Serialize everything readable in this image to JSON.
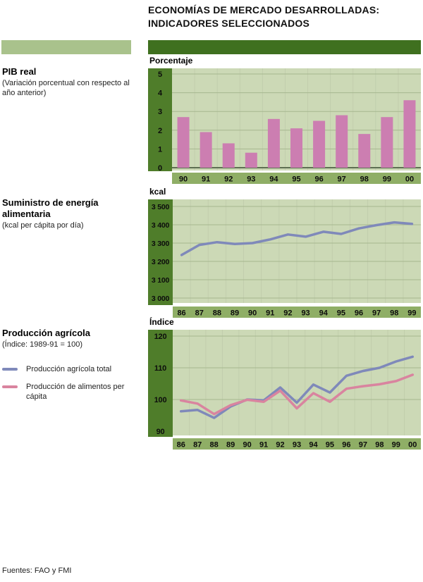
{
  "header": {
    "title_line1": "ECONOMÍAS DE MERCADO DESARROLLADAS:",
    "title_line2": "INDICADORES SELECCIONADOS"
  },
  "palette": {
    "header_bar": "#3f701f",
    "accent_left_bar": "#a9c28c",
    "axis_band": "#4f7d2a",
    "plot_bg": "#ccd9b6",
    "year_band": "#8fae66",
    "gridline": "#a6b78f",
    "zero_line": "#5e6f52",
    "bar_pink": "#cc7eb1",
    "line_blue": "#7f89ba",
    "line_pink": "#d9849f"
  },
  "sections": [
    {
      "heading": "PIB real",
      "sub": "(Variación porcentual con respecto al año anterior)"
    },
    {
      "heading": "Suministro de energía alimentaria",
      "sub": "(kcal per cápita por día)"
    },
    {
      "heading": "Producción agrícola",
      "sub": "(Índice: 1989-91 = 100)"
    }
  ],
  "legend": {
    "items": [
      {
        "label": "Producción agrícola total",
        "color": "#7f89ba"
      },
      {
        "label": "Producción de alimentos per cápita",
        "color": "#d9849f"
      }
    ]
  },
  "footer": {
    "sources": "Fuentes: FAO y FMI"
  },
  "chart_data": [
    {
      "type": "bar",
      "title": "PIB real (variación porcentual con respecto al año anterior)",
      "unit_label": "Porcentaje",
      "categories": [
        "90",
        "91",
        "92",
        "93",
        "94",
        "95",
        "96",
        "97",
        "98",
        "99",
        "00"
      ],
      "values": [
        2.7,
        1.9,
        1.3,
        0.8,
        2.6,
        2.1,
        2.5,
        2.8,
        1.8,
        2.7,
        3.6
      ],
      "ylim": [
        0,
        5
      ],
      "ytick_values": [
        0,
        1,
        2,
        3,
        4,
        5
      ],
      "ytick_labels": [
        "0",
        "1",
        "2",
        "3",
        "4",
        "5"
      ],
      "grid_ticks": [
        1,
        2,
        3,
        4,
        5
      ],
      "zero_line": true,
      "bar_color": "#cc7eb1"
    },
    {
      "type": "line",
      "title": "Suministro de energía alimentaria (kcal per cápita por día)",
      "unit_label": "kcal",
      "categories": [
        "86",
        "87",
        "88",
        "89",
        "90",
        "91",
        "92",
        "93",
        "94",
        "95",
        "96",
        "97",
        "98",
        "99"
      ],
      "series": [
        {
          "name": "Suministro de energía alimentaria",
          "color": "#7f89ba",
          "values": [
            3235,
            3290,
            3305,
            3295,
            3300,
            3320,
            3347,
            3335,
            3362,
            3350,
            3380,
            3398,
            3413,
            3405
          ]
        }
      ],
      "ylim": [
        3000,
        3500
      ],
      "ytick_values": [
        3000,
        3100,
        3200,
        3300,
        3400,
        3500
      ],
      "ytick_labels": [
        "3 000",
        "3 100",
        "3 200",
        "3 300",
        "3 400",
        "3 500"
      ],
      "grid_ticks": [
        3000,
        3100,
        3200,
        3300,
        3400,
        3500
      ],
      "zero_line": false
    },
    {
      "type": "line",
      "title": "Producción agrícola (Índice: 1989-91 = 100)",
      "unit_label": "Índice",
      "categories": [
        "86",
        "87",
        "88",
        "89",
        "90",
        "91",
        "92",
        "93",
        "94",
        "95",
        "96",
        "97",
        "98",
        "99",
        "00"
      ],
      "series": [
        {
          "name": "Producción agrícola total",
          "color": "#7f89ba",
          "values": [
            96.3,
            96.7,
            94.2,
            97.8,
            100,
            99.7,
            103.8,
            99,
            104.7,
            102.2,
            107.5,
            109,
            110,
            112,
            113.5
          ]
        },
        {
          "name": "Producción de alimentos per cápita",
          "color": "#d9849f",
          "values": [
            99.7,
            98.7,
            95.4,
            98.2,
            99.9,
            99.3,
            102.8,
            97.2,
            102,
            99.3,
            103.4,
            104.2,
            104.8,
            105.8,
            107.8
          ]
        }
      ],
      "ylim": [
        90,
        120
      ],
      "ytick_values": [
        90,
        100,
        110,
        120
      ],
      "ytick_labels": [
        "90",
        "100",
        "110",
        "120"
      ],
      "grid_ticks": [
        100,
        110,
        120
      ],
      "zero_line": false
    }
  ]
}
